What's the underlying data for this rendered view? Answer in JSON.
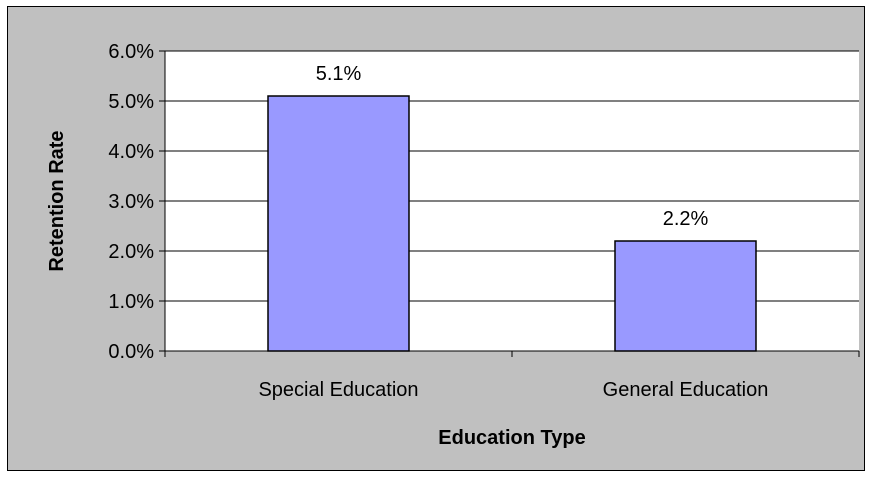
{
  "chart_data": {
    "type": "bar",
    "categories": [
      "Special Education",
      "General Education"
    ],
    "values": [
      0.051,
      0.022
    ],
    "data_labels": [
      "5.1%",
      "2.2%"
    ],
    "title": "",
    "xlabel": "Education Type",
    "ylabel": "Retention Rate",
    "ylim": [
      0,
      0.06
    ],
    "yticks": [
      "0.0%",
      "1.0%",
      "2.0%",
      "3.0%",
      "4.0%",
      "5.0%",
      "6.0%"
    ],
    "grid": true,
    "legend": "none",
    "colors": {
      "bar_fill": "#9999ff",
      "bar_stroke": "#000000",
      "plot_background": "#ffffff",
      "chart_background": "#c0c0c0",
      "gridline": "#000000"
    }
  }
}
